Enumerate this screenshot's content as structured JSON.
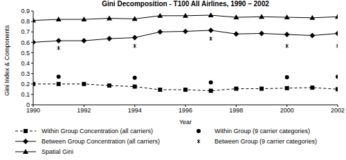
{
  "chart_data": {
    "type": "line",
    "title": "Gini Decomposition - T100 All Airlines, 1990 – 2002",
    "x_label": "Year",
    "y_label": "Gini Index & Components",
    "x": [
      1990,
      1991,
      1992,
      1993,
      1994,
      1995,
      1996,
      1997,
      1998,
      1999,
      2000,
      2001,
      2002
    ],
    "xlim": [
      1990,
      2002
    ],
    "xticks": [
      1990,
      1992,
      1994,
      1996,
      1998,
      2000,
      2002
    ],
    "ylim": [
      0,
      0.9
    ],
    "yticks": [
      0,
      0.1,
      0.2,
      0.3,
      0.4,
      0.5,
      0.6,
      0.7,
      0.8,
      0.9
    ],
    "series": [
      {
        "name": "Within Group Concentration (all carriers)",
        "color": "#000000",
        "marker": "square",
        "line_style": "dashed",
        "values": [
          0.2,
          0.2,
          0.2,
          0.185,
          0.175,
          0.145,
          0.145,
          0.135,
          0.155,
          0.155,
          0.16,
          0.165,
          0.15
        ]
      },
      {
        "name": "Between Group Concentration (all carriers)",
        "color": "#000000",
        "marker": "diamond",
        "line_style": "solid",
        "values": [
          0.6,
          0.615,
          0.615,
          0.635,
          0.645,
          0.7,
          0.705,
          0.715,
          0.68,
          0.685,
          0.675,
          0.665,
          0.685
        ]
      },
      {
        "name": "Spatial Gini",
        "color": "#000000",
        "marker": "triangle",
        "line_style": "solid",
        "values": [
          0.81,
          0.82,
          0.82,
          0.83,
          0.825,
          0.855,
          0.855,
          0.86,
          0.84,
          0.845,
          0.84,
          0.835,
          0.845
        ]
      },
      {
        "name": "Within Group (9 carrier categories)",
        "color": "#000000",
        "marker": "circle",
        "line_style": "none",
        "values": [
          null,
          0.27,
          null,
          null,
          0.26,
          null,
          null,
          0.215,
          null,
          null,
          0.265,
          null,
          0.27
        ]
      },
      {
        "name": "Between Group (9 carrier categories)",
        "color": "#000000",
        "marker": "asterisk",
        "line_style": "none",
        "values": [
          null,
          0.545,
          null,
          null,
          0.565,
          null,
          null,
          0.635,
          null,
          null,
          0.565,
          null,
          0.565
        ]
      }
    ]
  }
}
